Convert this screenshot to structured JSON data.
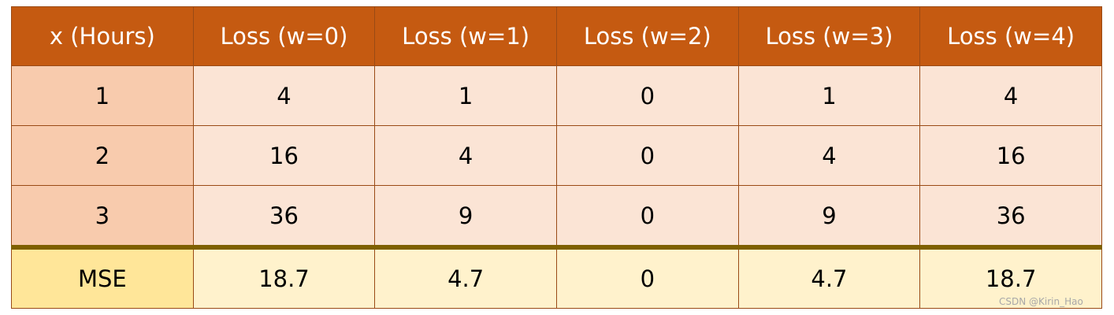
{
  "table": {
    "header": [
      "x (Hours)",
      "Loss (w=0)",
      "Loss (w=1)",
      "Loss (w=2)",
      "Loss (w=3)",
      "Loss (w=4)"
    ],
    "rows": [
      [
        "1",
        "4",
        "1",
        "0",
        "1",
        "4"
      ],
      [
        "2",
        "16",
        "4",
        "0",
        "4",
        "16"
      ],
      [
        "3",
        "36",
        "9",
        "0",
        "9",
        "36"
      ]
    ],
    "footer": [
      "MSE",
      "18.7",
      "4.7",
      "0",
      "4.7",
      "18.7"
    ]
  },
  "watermark": "CSDN @Kirin_Hao"
}
